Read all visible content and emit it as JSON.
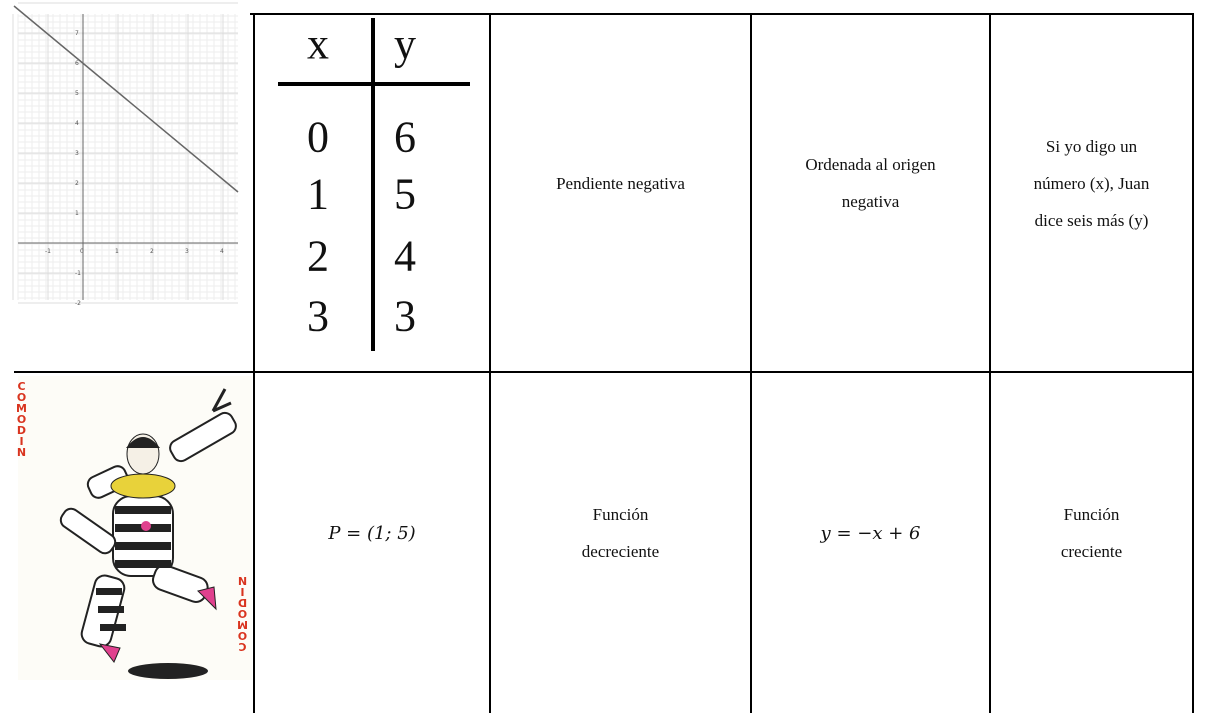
{
  "graph": {
    "x_tick_labels": [
      "-1",
      "0",
      "1",
      "2",
      "3",
      "4"
    ],
    "y_tick_labels": [
      "7",
      "6",
      "5",
      "4",
      "3",
      "2",
      "1",
      "-1",
      "-2"
    ]
  },
  "table": {
    "headers": [
      "x",
      "y"
    ],
    "rows": [
      [
        0,
        6
      ],
      [
        1,
        5
      ],
      [
        2,
        4
      ],
      [
        3,
        3
      ]
    ]
  },
  "card": {
    "text_top": "COMODIN",
    "text_bottom": "COMODIN"
  },
  "cells": [
    {
      "lines": [
        "Pendiente negativa"
      ]
    },
    {
      "lines": [
        "Ordenada al origen",
        "negativa"
      ]
    },
    {
      "lines": [
        "Si yo digo un",
        "número (x), Juan",
        "dice seis más (y)"
      ]
    },
    {
      "lines": [
        "P = (1; 5)"
      ],
      "math": true
    },
    {
      "lines": [
        "Función",
        "decreciente"
      ]
    },
    {
      "lines": [
        "y = −x + 6"
      ],
      "math": true
    },
    {
      "lines": [
        "Función",
        "creciente"
      ]
    }
  ]
}
